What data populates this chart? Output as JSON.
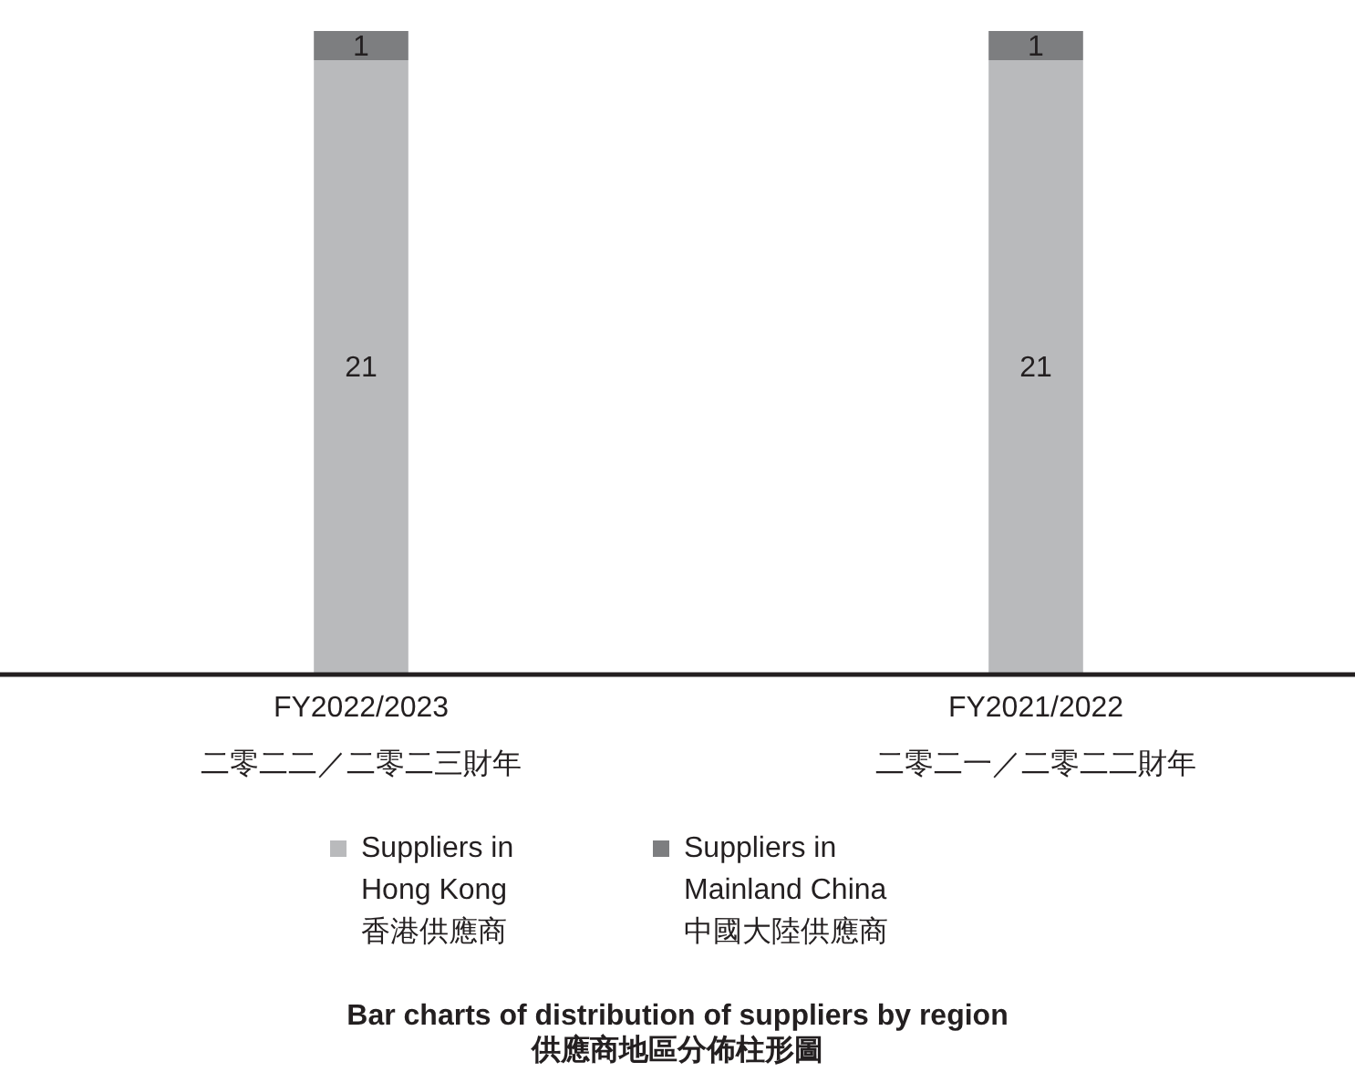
{
  "chart_data": {
    "type": "bar",
    "stacked": true,
    "data_labels": true,
    "legend": "bottom",
    "title": "Bar charts of distribution of suppliers by region",
    "subtitle": "供應商地區分佈柱形圖",
    "categories": [
      "FY2022/2023\n二零二二／二零二三財年",
      "FY2021/2022\n二零二一／二零二二財年"
    ],
    "series": [
      {
        "name": "Suppliers in\nHong Kong\n香港供應商",
        "color": "#b9babc",
        "values": [
          21,
          21
        ]
      },
      {
        "name": "Suppliers in\nMainland China\n中國大陸供應商",
        "color": "#7d7e80",
        "values": [
          1,
          1
        ]
      }
    ]
  }
}
